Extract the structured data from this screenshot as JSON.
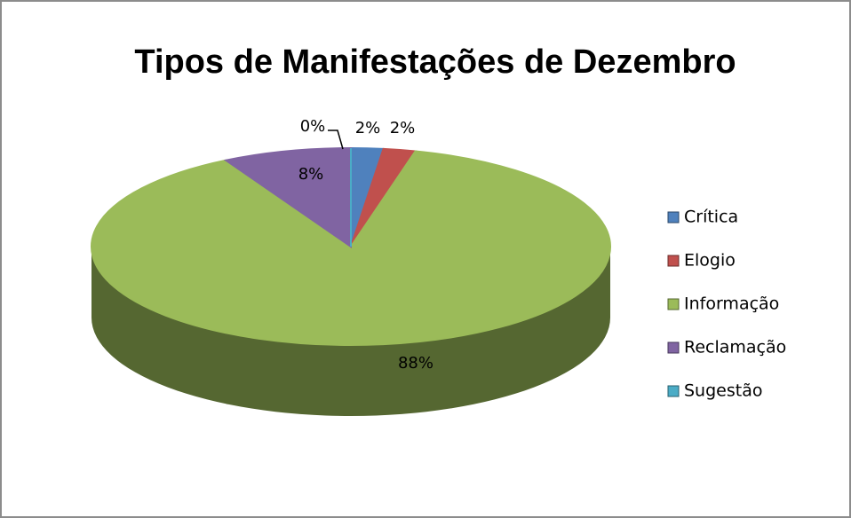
{
  "chart_data": {
    "type": "pie",
    "title": "Tipos de Manifestações de Dezembro",
    "categories": [
      "Crítica",
      "Elogio",
      "Informação",
      "Reclamação",
      "Sugestão"
    ],
    "values": [
      2,
      2,
      88,
      8,
      0
    ],
    "value_labels": [
      "2%",
      "2%",
      "88%",
      "8%",
      "0%"
    ],
    "colors": [
      "#4f81bd",
      "#c0504d",
      "#9bbb59",
      "#8064a2",
      "#4bacc6"
    ],
    "legend": "right"
  }
}
